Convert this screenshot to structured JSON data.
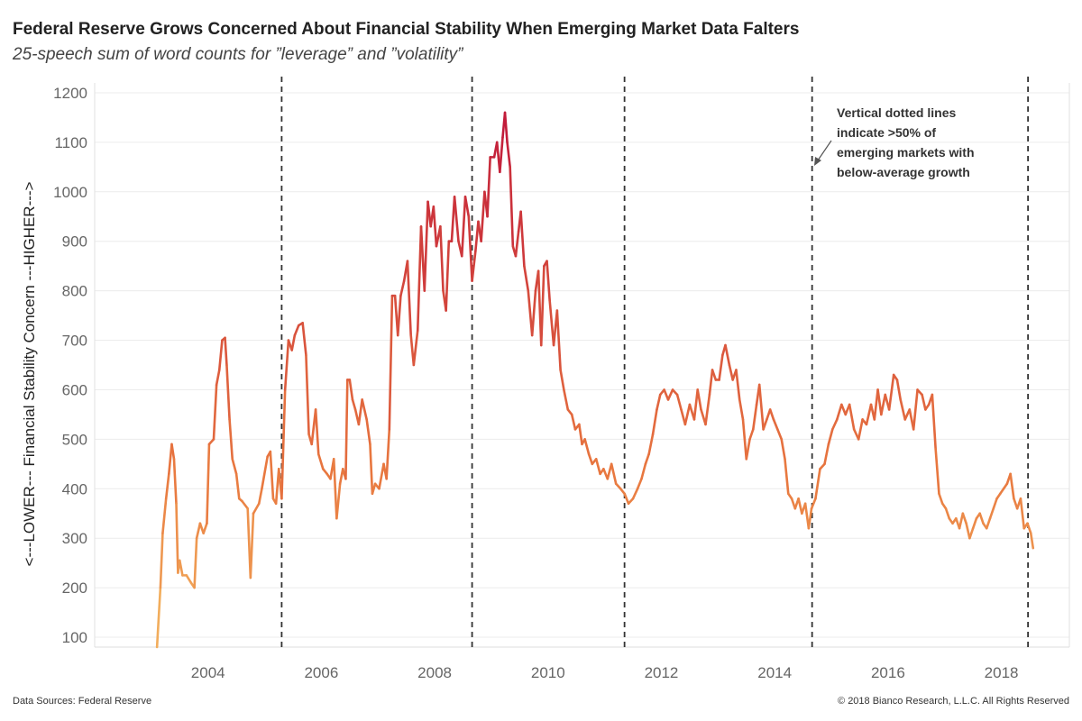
{
  "header": {
    "title": "Federal Reserve Grows Concerned About Financial Stability When Emerging Market Data Falters",
    "subtitle": "25-speech sum of word counts for ”leverage” and ”volatility”"
  },
  "footer": {
    "source": "Data Sources: Federal Reserve",
    "copyright": "© 2018 Bianco Research, L.L.C. All Rights Reserved"
  },
  "colors": {
    "low": "#f4b862",
    "mid": "#e8773f",
    "high": "#c0183a",
    "gridline": "#ececec",
    "marker_line": "#333333"
  },
  "chart_data": {
    "type": "line",
    "title": "Federal Reserve Grows Concerned About Financial Stability When Emerging Market Data Falters",
    "subtitle": "25-speech sum of word counts for ”leverage” and ”volatility”",
    "xlabel": "",
    "ylabel": "<---LOWER--- Financial Stability Concern ---HIGHER--->",
    "xlim": [
      2002.0,
      2019.2
    ],
    "ylim": [
      80,
      1220
    ],
    "x_ticks": [
      "2004",
      "2006",
      "2008",
      "2010",
      "2012",
      "2014",
      "2016",
      "2018"
    ],
    "y_ticks": [
      100,
      200,
      300,
      400,
      500,
      600,
      700,
      800,
      900,
      1000,
      1100,
      1200
    ],
    "grid": true,
    "color_scale": "value-based gradient from light orange (low) to crimson (high)",
    "series": [
      {
        "points": [
          [
            2003.1,
            80
          ],
          [
            2003.16,
            200
          ],
          [
            2003.2,
            310
          ],
          [
            2003.26,
            380
          ],
          [
            2003.31,
            430
          ],
          [
            2003.36,
            490
          ],
          [
            2003.4,
            460
          ],
          [
            2003.44,
            370
          ],
          [
            2003.47,
            230
          ],
          [
            2003.5,
            255
          ],
          [
            2003.55,
            225
          ],
          [
            2003.62,
            225
          ],
          [
            2003.7,
            210
          ],
          [
            2003.76,
            200
          ],
          [
            2003.8,
            300
          ],
          [
            2003.86,
            330
          ],
          [
            2003.92,
            310
          ],
          [
            2003.98,
            330
          ],
          [
            2004.02,
            490
          ],
          [
            2004.1,
            500
          ],
          [
            2004.15,
            610
          ],
          [
            2004.2,
            640
          ],
          [
            2004.25,
            700
          ],
          [
            2004.3,
            705
          ],
          [
            2004.33,
            650
          ],
          [
            2004.38,
            540
          ],
          [
            2004.43,
            460
          ],
          [
            2004.5,
            430
          ],
          [
            2004.55,
            380
          ],
          [
            2004.6,
            375
          ],
          [
            2004.7,
            360
          ],
          [
            2004.75,
            220
          ],
          [
            2004.8,
            350
          ],
          [
            2004.9,
            370
          ],
          [
            2004.95,
            400
          ],
          [
            2005.05,
            465
          ],
          [
            2005.1,
            475
          ],
          [
            2005.15,
            380
          ],
          [
            2005.2,
            370
          ],
          [
            2005.25,
            440
          ],
          [
            2005.3,
            380
          ],
          [
            2005.36,
            600
          ],
          [
            2005.42,
            700
          ],
          [
            2005.48,
            680
          ],
          [
            2005.53,
            710
          ],
          [
            2005.6,
            730
          ],
          [
            2005.67,
            735
          ],
          [
            2005.73,
            670
          ],
          [
            2005.78,
            510
          ],
          [
            2005.83,
            490
          ],
          [
            2005.9,
            560
          ],
          [
            2005.95,
            470
          ],
          [
            2006.03,
            440
          ],
          [
            2006.1,
            430
          ],
          [
            2006.16,
            420
          ],
          [
            2006.22,
            460
          ],
          [
            2006.27,
            340
          ],
          [
            2006.33,
            410
          ],
          [
            2006.38,
            440
          ],
          [
            2006.43,
            420
          ],
          [
            2006.46,
            620
          ],
          [
            2006.5,
            620
          ],
          [
            2006.55,
            580
          ],
          [
            2006.6,
            560
          ],
          [
            2006.66,
            530
          ],
          [
            2006.72,
            580
          ],
          [
            2006.8,
            540
          ],
          [
            2006.86,
            490
          ],
          [
            2006.9,
            390
          ],
          [
            2006.95,
            410
          ],
          [
            2007.02,
            400
          ],
          [
            2007.1,
            450
          ],
          [
            2007.15,
            420
          ],
          [
            2007.2,
            520
          ],
          [
            2007.25,
            790
          ],
          [
            2007.3,
            790
          ],
          [
            2007.35,
            710
          ],
          [
            2007.4,
            790
          ],
          [
            2007.46,
            820
          ],
          [
            2007.52,
            860
          ],
          [
            2007.58,
            710
          ],
          [
            2007.63,
            650
          ],
          [
            2007.7,
            720
          ],
          [
            2007.76,
            930
          ],
          [
            2007.82,
            800
          ],
          [
            2007.88,
            980
          ],
          [
            2007.93,
            930
          ],
          [
            2007.98,
            970
          ],
          [
            2008.03,
            890
          ],
          [
            2008.1,
            930
          ],
          [
            2008.15,
            800
          ],
          [
            2008.2,
            760
          ],
          [
            2008.25,
            900
          ],
          [
            2008.3,
            900
          ],
          [
            2008.35,
            990
          ],
          [
            2008.42,
            900
          ],
          [
            2008.48,
            870
          ],
          [
            2008.54,
            990
          ],
          [
            2008.6,
            950
          ],
          [
            2008.66,
            820
          ],
          [
            2008.72,
            880
          ],
          [
            2008.77,
            940
          ],
          [
            2008.82,
            900
          ],
          [
            2008.88,
            1000
          ],
          [
            2008.93,
            950
          ],
          [
            2008.98,
            1070
          ],
          [
            2009.05,
            1070
          ],
          [
            2009.1,
            1100
          ],
          [
            2009.15,
            1040
          ],
          [
            2009.2,
            1110
          ],
          [
            2009.24,
            1160
          ],
          [
            2009.28,
            1100
          ],
          [
            2009.33,
            1050
          ],
          [
            2009.38,
            890
          ],
          [
            2009.43,
            870
          ],
          [
            2009.48,
            920
          ],
          [
            2009.52,
            960
          ],
          [
            2009.58,
            850
          ],
          [
            2009.65,
            800
          ],
          [
            2009.72,
            710
          ],
          [
            2009.78,
            800
          ],
          [
            2009.83,
            840
          ],
          [
            2009.88,
            690
          ],
          [
            2009.93,
            850
          ],
          [
            2009.98,
            860
          ],
          [
            2010.03,
            780
          ],
          [
            2010.1,
            690
          ],
          [
            2010.16,
            760
          ],
          [
            2010.22,
            640
          ],
          [
            2010.28,
            600
          ],
          [
            2010.35,
            560
          ],
          [
            2010.42,
            550
          ],
          [
            2010.48,
            520
          ],
          [
            2010.55,
            530
          ],
          [
            2010.6,
            490
          ],
          [
            2010.65,
            500
          ],
          [
            2010.72,
            470
          ],
          [
            2010.78,
            450
          ],
          [
            2010.85,
            460
          ],
          [
            2010.92,
            430
          ],
          [
            2010.98,
            440
          ],
          [
            2011.05,
            420
          ],
          [
            2011.12,
            450
          ],
          [
            2011.2,
            410
          ],
          [
            2011.28,
            400
          ],
          [
            2011.35,
            390
          ],
          [
            2011.42,
            370
          ],
          [
            2011.5,
            380
          ],
          [
            2011.58,
            400
          ],
          [
            2011.65,
            420
          ],
          [
            2011.72,
            450
          ],
          [
            2011.78,
            470
          ],
          [
            2011.85,
            510
          ],
          [
            2011.92,
            560
          ],
          [
            2011.98,
            590
          ],
          [
            2012.05,
            600
          ],
          [
            2012.12,
            580
          ],
          [
            2012.2,
            600
          ],
          [
            2012.28,
            590
          ],
          [
            2012.35,
            560
          ],
          [
            2012.42,
            530
          ],
          [
            2012.5,
            570
          ],
          [
            2012.58,
            540
          ],
          [
            2012.64,
            600
          ],
          [
            2012.7,
            560
          ],
          [
            2012.78,
            530
          ],
          [
            2012.85,
            590
          ],
          [
            2012.9,
            640
          ],
          [
            2012.96,
            620
          ],
          [
            2013.02,
            620
          ],
          [
            2013.08,
            670
          ],
          [
            2013.13,
            690
          ],
          [
            2013.2,
            650
          ],
          [
            2013.26,
            620
          ],
          [
            2013.32,
            640
          ],
          [
            2013.38,
            580
          ],
          [
            2013.44,
            540
          ],
          [
            2013.5,
            460
          ],
          [
            2013.56,
            500
          ],
          [
            2013.62,
            520
          ],
          [
            2013.68,
            570
          ],
          [
            2013.73,
            610
          ],
          [
            2013.8,
            520
          ],
          [
            2013.86,
            540
          ],
          [
            2013.92,
            560
          ],
          [
            2013.98,
            540
          ],
          [
            2014.05,
            520
          ],
          [
            2014.12,
            500
          ],
          [
            2014.18,
            460
          ],
          [
            2014.24,
            390
          ],
          [
            2014.3,
            380
          ],
          [
            2014.36,
            360
          ],
          [
            2014.42,
            380
          ],
          [
            2014.48,
            350
          ],
          [
            2014.54,
            370
          ],
          [
            2014.6,
            320
          ],
          [
            2014.65,
            360
          ],
          [
            2014.72,
            380
          ],
          [
            2014.8,
            440
          ],
          [
            2014.88,
            450
          ],
          [
            2014.95,
            490
          ],
          [
            2015.02,
            520
          ],
          [
            2015.1,
            540
          ],
          [
            2015.18,
            570
          ],
          [
            2015.25,
            550
          ],
          [
            2015.32,
            570
          ],
          [
            2015.4,
            520
          ],
          [
            2015.48,
            500
          ],
          [
            2015.55,
            540
          ],
          [
            2015.62,
            530
          ],
          [
            2015.7,
            570
          ],
          [
            2015.76,
            540
          ],
          [
            2015.82,
            600
          ],
          [
            2015.88,
            550
          ],
          [
            2015.95,
            590
          ],
          [
            2016.02,
            560
          ],
          [
            2016.1,
            630
          ],
          [
            2016.16,
            620
          ],
          [
            2016.22,
            580
          ],
          [
            2016.3,
            540
          ],
          [
            2016.38,
            560
          ],
          [
            2016.45,
            520
          ],
          [
            2016.52,
            600
          ],
          [
            2016.6,
            590
          ],
          [
            2016.66,
            560
          ],
          [
            2016.72,
            570
          ],
          [
            2016.78,
            590
          ],
          [
            2016.84,
            480
          ],
          [
            2016.9,
            390
          ],
          [
            2016.96,
            370
          ],
          [
            2017.02,
            360
          ],
          [
            2017.08,
            340
          ],
          [
            2017.14,
            330
          ],
          [
            2017.2,
            340
          ],
          [
            2017.26,
            320
          ],
          [
            2017.32,
            350
          ],
          [
            2017.38,
            330
          ],
          [
            2017.44,
            300
          ],
          [
            2017.5,
            320
          ],
          [
            2017.56,
            340
          ],
          [
            2017.62,
            350
          ],
          [
            2017.68,
            330
          ],
          [
            2017.74,
            320
          ],
          [
            2017.8,
            340
          ],
          [
            2017.86,
            360
          ],
          [
            2017.92,
            380
          ],
          [
            2017.98,
            390
          ],
          [
            2018.04,
            400
          ],
          [
            2018.1,
            410
          ],
          [
            2018.16,
            430
          ],
          [
            2018.22,
            380
          ],
          [
            2018.28,
            360
          ],
          [
            2018.34,
            380
          ],
          [
            2018.4,
            320
          ],
          [
            2018.46,
            330
          ],
          [
            2018.52,
            310
          ],
          [
            2018.56,
            280
          ]
        ]
      }
    ],
    "vertical_lines": [
      2005.3,
      2008.66,
      2011.35,
      2014.66,
      2018.47
    ],
    "annotations": [
      {
        "text_lines": [
          "Vertical dotted lines",
          "indicate >50% of",
          "emerging markets with",
          "below-average growth"
        ]
      }
    ]
  }
}
